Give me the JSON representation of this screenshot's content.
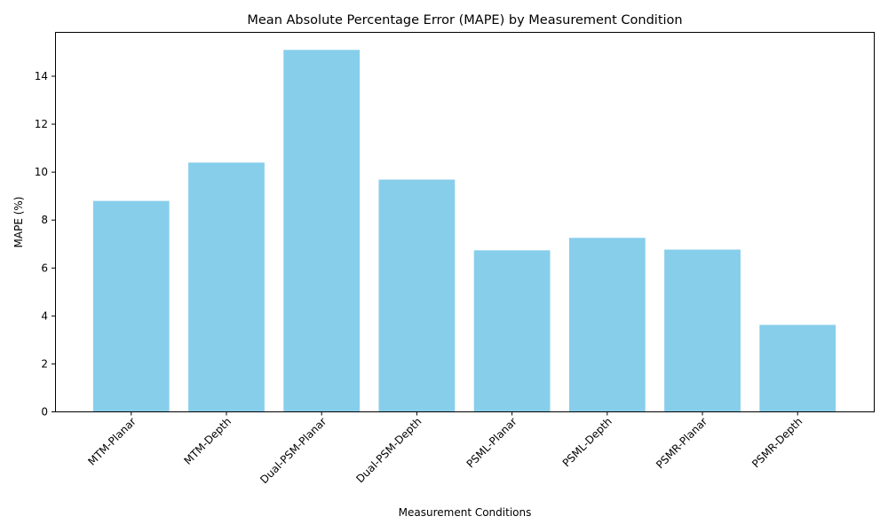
{
  "chart_data": {
    "type": "bar",
    "title": "Mean Absolute Percentage Error (MAPE) by Measurement Condition",
    "xlabel": "Measurement Conditions",
    "ylabel": "MAPE (%)",
    "categories": [
      "MTM-Planar",
      "MTM-Depth",
      "Dual-PSM-Planar",
      "Dual-PSM-Depth",
      "PSML-Planar",
      "PSML-Depth",
      "PSMR-Planar",
      "PSMR-Depth"
    ],
    "values": [
      8.78,
      10.38,
      15.08,
      9.67,
      6.72,
      7.24,
      6.75,
      3.61
    ],
    "ylim": [
      0,
      15.83
    ],
    "yticks": [
      0,
      2,
      4,
      6,
      8,
      10,
      12,
      14
    ],
    "grid": false,
    "colors": {
      "bar": "#87CEEB",
      "axis": "#000000",
      "background": "#ffffff"
    }
  }
}
